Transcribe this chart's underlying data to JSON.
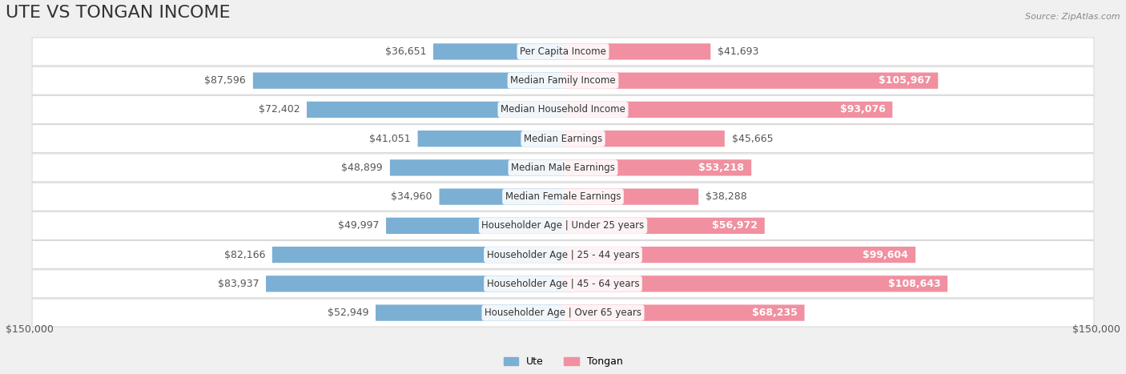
{
  "title": "UTE VS TONGAN INCOME",
  "source": "Source: ZipAtlas.com",
  "categories": [
    "Per Capita Income",
    "Median Family Income",
    "Median Household Income",
    "Median Earnings",
    "Median Male Earnings",
    "Median Female Earnings",
    "Householder Age | Under 25 years",
    "Householder Age | 25 - 44 years",
    "Householder Age | 45 - 64 years",
    "Householder Age | Over 65 years"
  ],
  "ute_values": [
    36651,
    87596,
    72402,
    41051,
    48899,
    34960,
    49997,
    82166,
    83937,
    52949
  ],
  "tongan_values": [
    41693,
    105967,
    93076,
    45665,
    53218,
    38288,
    56972,
    99604,
    108643,
    68235
  ],
  "ute_labels": [
    "$36,651",
    "$87,596",
    "$72,402",
    "$41,051",
    "$48,899",
    "$34,960",
    "$49,997",
    "$82,166",
    "$83,937",
    "$52,949"
  ],
  "tongan_labels": [
    "$41,693",
    "$105,967",
    "$93,076",
    "$45,665",
    "$53,218",
    "$38,288",
    "$56,972",
    "$99,604",
    "$108,643",
    "$68,235"
  ],
  "ute_color": "#7bafd4",
  "tongan_color": "#f090a0",
  "ute_color_strong": "#5b8fc4",
  "tongan_color_strong": "#e8608a",
  "max_value": 150000,
  "background_color": "#f0f0f0",
  "row_bg_color": "#f8f8f8",
  "xlabel_left": "$150,000",
  "xlabel_right": "$150,000",
  "legend_ute": "Ute",
  "legend_tongan": "Tongan",
  "title_fontsize": 16,
  "label_fontsize": 9,
  "category_fontsize": 8.5
}
